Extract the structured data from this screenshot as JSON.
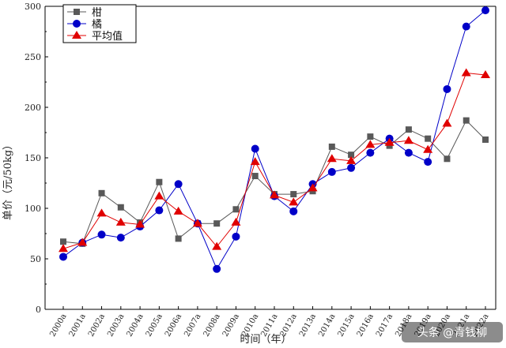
{
  "chart_data": {
    "type": "line",
    "xlabel": "时间（年）",
    "ylabel": "单价（元/50kg）",
    "ylim": [
      0,
      300
    ],
    "yticks": [
      0,
      50,
      100,
      150,
      200,
      250,
      300
    ],
    "categories": [
      "2000a",
      "2001a",
      "2002a",
      "2003a",
      "2004a",
      "2005a",
      "2006a",
      "2007a",
      "2008a",
      "2009a",
      "2010a",
      "2011a",
      "2012a",
      "2013a",
      "2014a",
      "2015a",
      "2016a",
      "2017a",
      "2018a",
      "2019a",
      "2020a",
      "2021a",
      "2022a"
    ],
    "series": [
      {
        "name": "柑",
        "color": "#595959",
        "marker": "square",
        "values": [
          67,
          65,
          115,
          101,
          86,
          126,
          70,
          85,
          85,
          99,
          132,
          114,
          114,
          117,
          161,
          153,
          171,
          162,
          178,
          169,
          149,
          187,
          168
        ]
      },
      {
        "name": "橘",
        "color": "#0000c8",
        "marker": "circle",
        "values": [
          52,
          66,
          74,
          71,
          82,
          98,
          124,
          85,
          40,
          72,
          159,
          112,
          97,
          124,
          136,
          140,
          155,
          169,
          155,
          146,
          218,
          280,
          296
        ]
      },
      {
        "name": "平均值",
        "color": "#e00000",
        "marker": "triangle",
        "values": [
          60,
          66,
          95,
          86,
          84,
          112,
          97,
          85,
          62,
          86,
          146,
          113,
          106,
          120,
          149,
          147,
          163,
          165,
          167,
          158,
          184,
          234,
          232
        ]
      }
    ],
    "legend_position": "top-left",
    "grid": false
  },
  "watermark": {
    "text": "头条 @青钱柳"
  }
}
